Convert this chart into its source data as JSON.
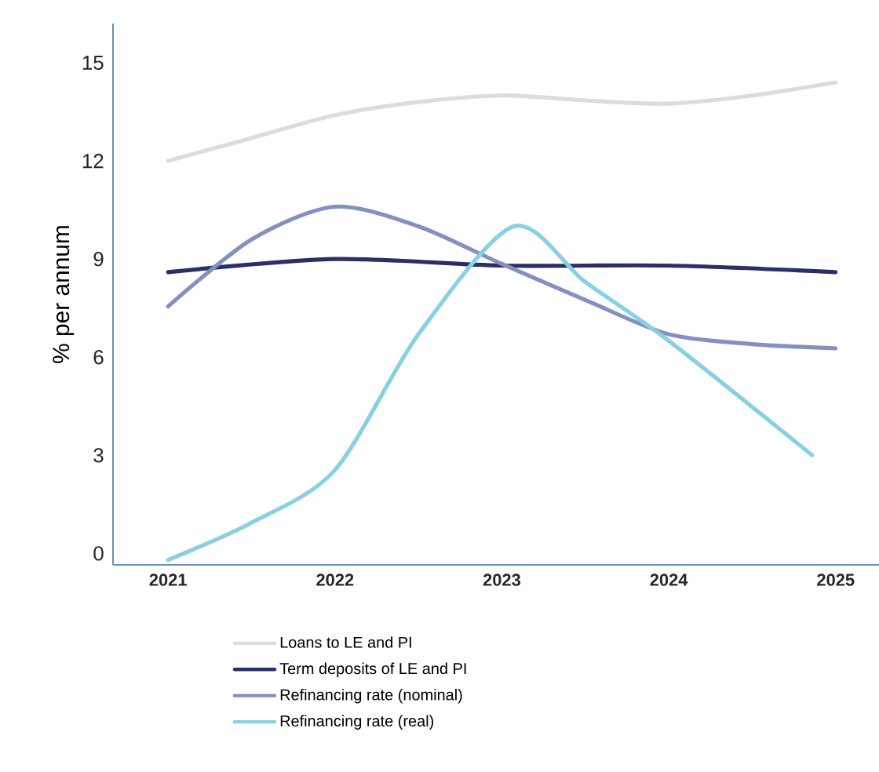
{
  "chart_data": {
    "type": "line",
    "ylabel": "% per annum",
    "xlim": [
      2020.67,
      2025.26
    ],
    "ylim": [
      -0.35,
      16.2
    ],
    "xticks": [
      2021,
      2022,
      2023,
      2024,
      2025
    ],
    "yticks": [
      0,
      3,
      6,
      9,
      12,
      15
    ],
    "grid": false,
    "legend": "bottom",
    "marker": "none",
    "line_style": "solid",
    "series": [
      {
        "name": "Loans to LE and PI",
        "color": "#dcdcdc",
        "x": [
          2021,
          2021.5,
          2022,
          2022.5,
          2023,
          2023.5,
          2024,
          2024.5,
          2025
        ],
        "values": [
          12.0,
          12.7,
          13.4,
          13.8,
          14.0,
          13.85,
          13.75,
          14.0,
          14.4
        ]
      },
      {
        "name": "Term deposits of LE and PI",
        "color": "#2a2f66",
        "x": [
          2021,
          2022,
          2023,
          2024,
          2025
        ],
        "values": [
          8.6,
          9.0,
          8.8,
          8.8,
          8.6
        ]
      },
      {
        "name": "Refinancing rate (nominal)",
        "color": "#8590c0",
        "x": [
          2021,
          2021.5,
          2022,
          2022.5,
          2023,
          2023.5,
          2024,
          2024.5,
          2025
        ],
        "values": [
          7.55,
          9.6,
          10.6,
          10.0,
          8.85,
          7.75,
          6.7,
          6.4,
          6.27
        ]
      },
      {
        "name": "Refinancing rate (real)",
        "color": "#88d0e2",
        "x": [
          2021,
          2021.5,
          2022,
          2022.5,
          2023.07,
          2023.5,
          2024,
          2024.86
        ],
        "values": [
          -0.2,
          0.94,
          2.55,
          6.7,
          10.0,
          8.3,
          6.5,
          3.0
        ]
      }
    ]
  }
}
